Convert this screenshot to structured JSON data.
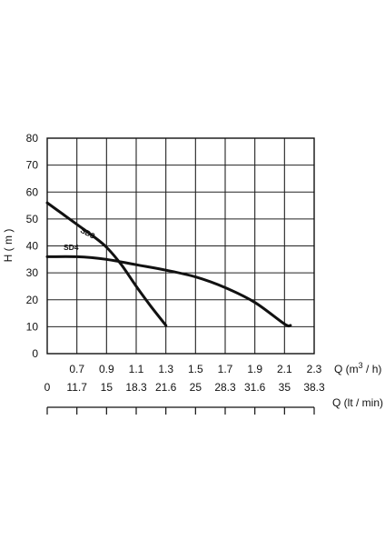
{
  "chart_data": {
    "type": "line",
    "ylabel": "H ( m )",
    "ylim": [
      0,
      80
    ],
    "y_ticks": [
      "0",
      "10",
      "20",
      "30",
      "40",
      "50",
      "60",
      "70",
      "80"
    ],
    "x_axis_1": {
      "label_prefix": "Q (m",
      "label_sup": "3",
      "label_suffix": " / h)",
      "ticks": [
        "0.7",
        "0.9",
        "1.1",
        "1.3",
        "1.5",
        "1.7",
        "1.9",
        "2.1",
        "2.3"
      ]
    },
    "x_axis_2": {
      "label": "Q (lt / min)",
      "ticks": [
        "0",
        "11.7",
        "15",
        "18.3",
        "21.6",
        "25",
        "28.3",
        "31.6",
        "35",
        "38.3"
      ]
    },
    "xlim": [
      0.5,
      2.3
    ],
    "grid": true,
    "series": [
      {
        "name": "SD3",
        "points": [
          [
            0.5,
            56
          ],
          [
            0.6,
            52
          ],
          [
            0.7,
            48
          ],
          [
            0.8,
            44
          ],
          [
            0.9,
            39.5
          ],
          [
            1.0,
            33
          ],
          [
            1.1,
            25
          ],
          [
            1.2,
            17.5
          ],
          [
            1.3,
            10.5
          ]
        ]
      },
      {
        "name": "SD4",
        "points": [
          [
            0.5,
            36
          ],
          [
            0.7,
            36
          ],
          [
            0.9,
            35
          ],
          [
            1.1,
            33
          ],
          [
            1.3,
            31
          ],
          [
            1.5,
            28.5
          ],
          [
            1.7,
            24.5
          ],
          [
            1.9,
            19
          ],
          [
            2.1,
            11
          ],
          [
            2.14,
            10.5
          ]
        ]
      }
    ]
  }
}
